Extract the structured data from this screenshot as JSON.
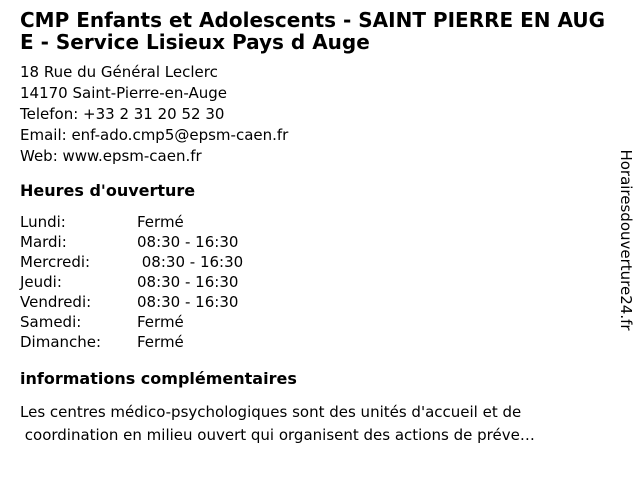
{
  "page": {
    "background": "#ffffff",
    "text_color": "#000000"
  },
  "title": {
    "line1": "CMP Enfants et Adolescents - SAINT PIERRE EN AUG",
    "line2": "E - Service Lisieux Pays d Auge"
  },
  "contact": {
    "street": "18 Rue du Général Leclerc",
    "city": "14170 Saint-Pierre-en-Auge",
    "phone_line": "Telefon: +33 2 31 20 52 30",
    "email_line": "Email: enf-ado.cmp5@epsm-caen.fr",
    "web_line": "Web: www.epsm-caen.fr"
  },
  "hours": {
    "heading": "Heures d'ouverture",
    "rows": [
      {
        "day": "Lundi:",
        "value": "Fermé"
      },
      {
        "day": "Mardi:",
        "value": "08:30 - 16:30"
      },
      {
        "day": "Mercredi:",
        "value": " 08:30 - 16:30"
      },
      {
        "day": "Jeudi:",
        "value": "08:30 - 16:30"
      },
      {
        "day": "Vendredi:",
        "value": "08:30 - 16:30"
      },
      {
        "day": "Samedi:",
        "value": "Fermé"
      },
      {
        "day": "Dimanche:",
        "value": "Fermé"
      }
    ]
  },
  "info": {
    "heading": "informations complémentaires",
    "line1": "Les centres médico-psychologiques sont des unités d'accueil et de",
    "line2": " coordination en milieu ouvert qui organisent des actions de préve…"
  },
  "watermark": "Horairesdouverture24.fr"
}
